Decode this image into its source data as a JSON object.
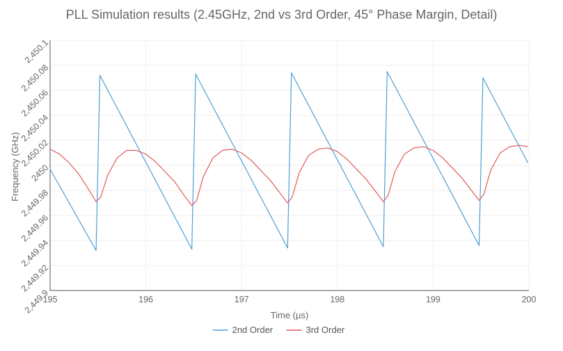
{
  "chart_data": {
    "type": "line",
    "title": "PLL Simulation results (2.45GHz, 2nd vs 3rd Order, 45° Phase Margin, Detail)",
    "xlabel": "Time (µs)",
    "ylabel": "Frequency (GHz)",
    "xlim": [
      195,
      200
    ],
    "ylim": [
      2449.9,
      2450.1
    ],
    "x_ticks": [
      195,
      196,
      197,
      198,
      199,
      200
    ],
    "x_tick_labels": [
      "195",
      "196",
      "197",
      "198",
      "199",
      "200"
    ],
    "y_ticks": [
      2449.9,
      2449.92,
      2449.94,
      2449.96,
      2449.98,
      2450,
      2450.02,
      2450.04,
      2450.06,
      2450.08,
      2450.1
    ],
    "y_tick_labels": [
      "2,449.9",
      "2,449.92",
      "2,449.94",
      "2,449.96",
      "2,449.98",
      "2450",
      "2,450.02",
      "2,450.04",
      "2,450.06",
      "2,450.08",
      "2,450.1"
    ],
    "grid": true,
    "legend_position": "bottom-center",
    "series": [
      {
        "name": "2nd Order",
        "color": "#4c9fd6",
        "x": [
          195,
          195.48,
          195.52,
          196.48,
          196.52,
          197.48,
          197.52,
          198.48,
          198.52,
          199.48,
          199.52,
          199.99
        ],
        "y": [
          2449.997,
          2449.932,
          2450.072,
          2449.933,
          2450.073,
          2449.934,
          2450.074,
          2449.935,
          2450.075,
          2449.936,
          2450.07,
          2450.002
        ]
      },
      {
        "name": "3rd Order",
        "color": "#e05a5a",
        "x": [
          195,
          195.1,
          195.2,
          195.3,
          195.4,
          195.48,
          195.53,
          195.6,
          195.7,
          195.8,
          195.9,
          196.0,
          196.1,
          196.2,
          196.3,
          196.4,
          196.48,
          196.53,
          196.6,
          196.7,
          196.8,
          196.9,
          197.0,
          197.1,
          197.2,
          197.3,
          197.4,
          197.48,
          197.53,
          197.6,
          197.7,
          197.8,
          197.9,
          198.0,
          198.1,
          198.2,
          198.3,
          198.4,
          198.48,
          198.53,
          198.6,
          198.7,
          198.8,
          198.9,
          199.0,
          199.1,
          199.2,
          199.3,
          199.4,
          199.48,
          199.53,
          199.6,
          199.7,
          199.8,
          199.9,
          199.99
        ],
        "y": [
          2450.013,
          2450.009,
          2450.002,
          2449.993,
          2449.981,
          2449.971,
          2449.975,
          2449.992,
          2450.006,
          2450.012,
          2450.012,
          2450.009,
          2450.003,
          2449.995,
          2449.987,
          2449.976,
          2449.968,
          2449.972,
          2449.991,
          2450.006,
          2450.012,
          2450.013,
          2450.01,
          2450.004,
          2449.996,
          2449.988,
          2449.978,
          2449.97,
          2449.975,
          2449.994,
          2450.008,
          2450.013,
          2450.014,
          2450.011,
          2450.005,
          2449.997,
          2449.989,
          2449.979,
          2449.971,
          2449.976,
          2449.995,
          2450.009,
          2450.014,
          2450.015,
          2450.012,
          2450.006,
          2449.998,
          2449.99,
          2449.98,
          2449.972,
          2449.977,
          2449.996,
          2450.01,
          2450.015,
          2450.016,
          2450.015
        ]
      }
    ]
  }
}
